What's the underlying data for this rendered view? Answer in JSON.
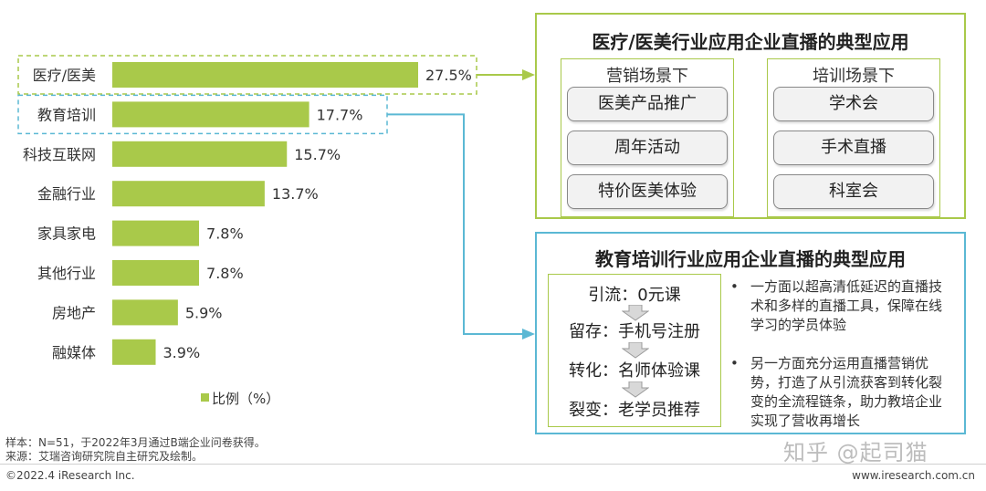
{
  "chart_data": {
    "type": "bar",
    "orientation": "horizontal",
    "categories": [
      "医疗/医美",
      "教育培训",
      "科技互联网",
      "金融行业",
      "家具家电",
      "其他行业",
      "房地产",
      "融媒体"
    ],
    "values": [
      27.5,
      17.7,
      15.7,
      13.7,
      7.8,
      7.8,
      5.9,
      3.9
    ],
    "value_labels": [
      "27.5%",
      "17.7%",
      "15.7%",
      "13.7%",
      "7.8%",
      "7.8%",
      "5.9%",
      "3.9%"
    ],
    "legend": "比例（%）",
    "xlim": [
      0,
      27.5
    ],
    "bar_color": "#a9c94a",
    "highlight": {
      "first": "#a9c94a",
      "second": "#5bb8d4"
    }
  },
  "panel_medical": {
    "title": "医疗/医美行业应用企业直播的典型应用",
    "marketing": {
      "title": "营销场景下",
      "items": [
        "医美产品推广",
        "周年活动",
        "特价医美体验"
      ]
    },
    "training": {
      "title": "培训场景下",
      "items": [
        "学术会",
        "手术直播",
        "科室会"
      ]
    }
  },
  "panel_education": {
    "title": "教育培训行业应用企业直播的典型应用",
    "flow": [
      "引流：0元课",
      "留存：手机号注册",
      "转化：名师体验课",
      "裂变：老学员推荐"
    ],
    "bullets": [
      "一方面以超高清低延迟的直播技术和多样的直播工具，保障在线学习的学员体验",
      "另一方面充分运用直播营销优势，打造了从引流获客到转化裂变的全流程链条，助力教培企业实现了营收再增长"
    ]
  },
  "footnotes": {
    "sample": "样本：N=51，于2022年3月通过B端企业问卷获得。",
    "source": "来源：艾瑞咨询研究院自主研究及绘制。"
  },
  "footer": {
    "copyright": "©2022.4 iResearch Inc.",
    "website": "www.iresearch.com.cn"
  },
  "watermark": "知乎 @起司猫",
  "colors": {
    "green": "#a9c94a",
    "blue": "#5bb8d4"
  }
}
